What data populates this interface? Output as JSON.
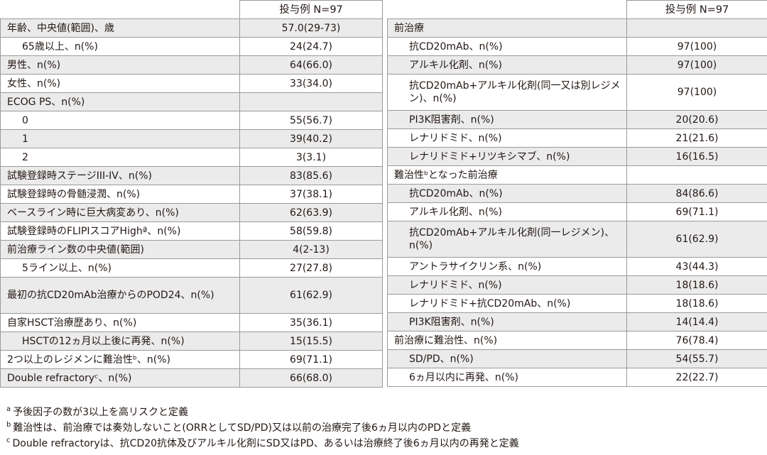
{
  "header_value": "投与例 N=97",
  "left_rows": [
    {
      "label": "年齢、中央値(範囲)、歳",
      "value": "57.0(29-73)",
      "shade": true,
      "indent": false,
      "tall": false
    },
    {
      "label": "65歳以上、n(%)",
      "value": "24(24.7)",
      "shade": false,
      "indent": true,
      "tall": false
    },
    {
      "label": "男性、n(%)",
      "value": "64(66.0)",
      "shade": true,
      "indent": false,
      "tall": false
    },
    {
      "label": "女性、n(%)",
      "value": "33(34.0)",
      "shade": false,
      "indent": false,
      "tall": false
    },
    {
      "label": "ECOG PS、n(%)",
      "value": "",
      "shade": true,
      "indent": false,
      "tall": false
    },
    {
      "label": "0",
      "value": "55(56.7)",
      "shade": false,
      "indent": true,
      "tall": false
    },
    {
      "label": "1",
      "value": "39(40.2)",
      "shade": true,
      "indent": true,
      "tall": false
    },
    {
      "label": "2",
      "value": "3(3.1)",
      "shade": false,
      "indent": true,
      "tall": false
    },
    {
      "label": "試験登録時ステージIII-IV、n(%)",
      "value": "83(85.6)",
      "shade": true,
      "indent": false,
      "tall": false
    },
    {
      "label": "試験登録時の骨髄浸潤、n(%)",
      "value": "37(38.1)",
      "shade": false,
      "indent": false,
      "tall": false
    },
    {
      "label": "ベースライン時に巨大病変あり、n(%)",
      "value": "62(63.9)",
      "shade": true,
      "indent": false,
      "tall": false
    },
    {
      "label": "試験登録時のFLIPIスコアHighª、n(%)",
      "value": "58(59.8)",
      "shade": false,
      "indent": false,
      "tall": false
    },
    {
      "label": "前治療ライン数の中央値(範囲)",
      "value": "4(2-13)",
      "shade": true,
      "indent": false,
      "tall": false
    },
    {
      "label": "5ライン以上、n(%)",
      "value": "27(27.8)",
      "shade": false,
      "indent": true,
      "tall": false
    },
    {
      "label": "最初の抗CD20mAb治療からのPOD24、n(%)",
      "value": "61(62.9)",
      "shade": true,
      "indent": false,
      "tall": true
    },
    {
      "label": "自家HSCT治療歴あり、n(%)",
      "value": "35(36.1)",
      "shade": false,
      "indent": false,
      "tall": false
    },
    {
      "label": "HSCTの12ヵ月以上後に再発、n(%)",
      "value": "15(15.5)",
      "shade": true,
      "indent": true,
      "tall": false
    },
    {
      "label": "2つ以上のレジメンに難治性ᵇ、n(%)",
      "value": "69(71.1)",
      "shade": false,
      "indent": false,
      "tall": false
    },
    {
      "label": "Double refractoryᶜ、n(%)",
      "value": "66(68.0)",
      "shade": true,
      "indent": false,
      "tall": false
    }
  ],
  "right_rows": [
    {
      "label": "前治療",
      "value": "",
      "shade": true,
      "indent": false,
      "tall": false
    },
    {
      "label": "抗CD20mAb、n(%)",
      "value": "97(100)",
      "shade": false,
      "indent": true,
      "tall": false
    },
    {
      "label": "アルキル化剤、n(%)",
      "value": "97(100)",
      "shade": true,
      "indent": true,
      "tall": false
    },
    {
      "label": "抗CD20mAb+アルキル化剤(同一又は別レジメン)、n(%)",
      "value": "97(100)",
      "shade": false,
      "indent": true,
      "tall": true
    },
    {
      "label": "PI3K阻害剤、n(%)",
      "value": "20(20.6)",
      "shade": true,
      "indent": true,
      "tall": false
    },
    {
      "label": "レナリドミド、n(%)",
      "value": "21(21.6)",
      "shade": false,
      "indent": true,
      "tall": false
    },
    {
      "label": "レナリドミド+リツキシマブ、n(%)",
      "value": "16(16.5)",
      "shade": true,
      "indent": true,
      "tall": false
    },
    {
      "label": "難治性ᵇとなった前治療",
      "value": "",
      "shade": false,
      "indent": false,
      "tall": false
    },
    {
      "label": "抗CD20mAb、n(%)",
      "value": "84(86.6)",
      "shade": true,
      "indent": true,
      "tall": false
    },
    {
      "label": "アルキル化剤、n(%)",
      "value": "69(71.1)",
      "shade": false,
      "indent": true,
      "tall": false
    },
    {
      "label": "抗CD20mAb+アルキル化剤(同一レジメン)、n(%)",
      "value": "61(62.9)",
      "shade": true,
      "indent": true,
      "tall": true
    },
    {
      "label": "アントラサイクリン系、n(%)",
      "value": "43(44.3)",
      "shade": false,
      "indent": true,
      "tall": false
    },
    {
      "label": "レナリドミド、n(%)",
      "value": "18(18.6)",
      "shade": true,
      "indent": true,
      "tall": false
    },
    {
      "label": "レナリドミド+抗CD20mAb、n(%)",
      "value": "18(18.6)",
      "shade": false,
      "indent": true,
      "tall": false
    },
    {
      "label": "PI3K阻害剤、n(%)",
      "value": "14(14.4)",
      "shade": true,
      "indent": true,
      "tall": false
    },
    {
      "label": "前治療に難治性、n(%)",
      "value": "76(78.4)",
      "shade": false,
      "indent": false,
      "tall": false
    },
    {
      "label": "SD/PD、n(%)",
      "value": "54(55.7)",
      "shade": true,
      "indent": true,
      "tall": false
    },
    {
      "label": "6ヵ月以内に再発、n(%)",
      "value": "22(22.7)",
      "shade": false,
      "indent": true,
      "tall": false
    }
  ],
  "footnotes": [
    {
      "mark": "a",
      "text": "予後因子の数が3以上を高リスクと定義"
    },
    {
      "mark": "b",
      "text": "難治性は、前治療では奏効しないこと(ORRとしてSD/PD)又は以前の治療完了後6ヵ月以内のPDと定義"
    },
    {
      "mark": "c",
      "text": "Double refractoryは、抗CD20抗体及びアルキル化剤にSD又はPD、あるいは治療終了後6ヵ月以内の再発と定義"
    }
  ]
}
